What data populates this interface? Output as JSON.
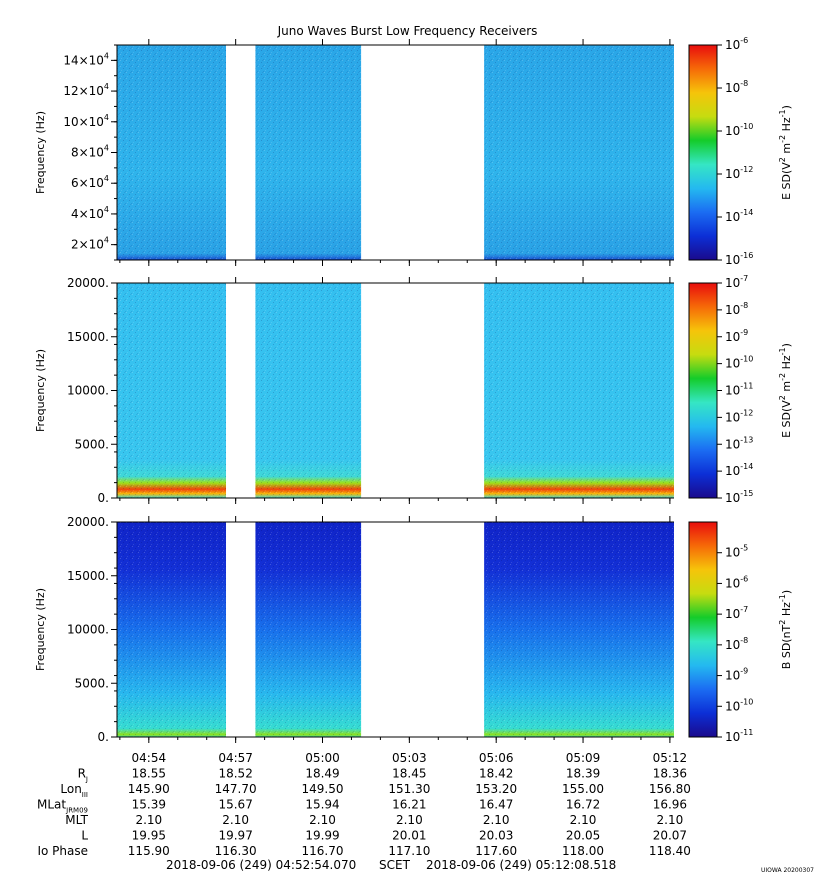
{
  "chart_data": [
    {
      "type": "heatmap",
      "title": "Juno Waves Burst Low Frequency Receivers",
      "ylabel": "Frequency (Hz)",
      "ylim": [
        10000,
        150000
      ],
      "y_scale": "linear",
      "y_ticks": [
        20000,
        40000,
        60000,
        80000,
        100000,
        120000,
        140000
      ],
      "y_tick_mantissa": [
        "2",
        "4",
        "6",
        "8",
        "10",
        "12",
        "14"
      ],
      "y_tick_exponent": "4",
      "colorbar": {
        "label": "E SD(V² m⁻² Hz⁻¹)",
        "label_parts": {
          "base": "E SD(V",
          "sup1": "2",
          "mid": " m",
          "sup2": "-2",
          "mid2": " Hz",
          "sup3": "-1",
          "end": ")"
        },
        "scale": "log",
        "range_exp": [
          -16,
          -6
        ],
        "tick_exps": [
          -16,
          -14,
          -12,
          -10,
          -8,
          -6
        ]
      }
    },
    {
      "type": "heatmap",
      "ylabel": "Frequency (Hz)",
      "ylim": [
        0,
        20000
      ],
      "y_scale": "linear",
      "y_ticks": [
        0,
        5000,
        10000,
        15000,
        20000
      ],
      "y_tick_labels": [
        "0.",
        "5000.",
        "10000.",
        "15000.",
        "20000."
      ],
      "colorbar": {
        "label": "E SD(V² m⁻² Hz⁻¹)",
        "label_parts": {
          "base": "E SD(V",
          "sup1": "2",
          "mid": " m",
          "sup2": "-2",
          "mid2": " Hz",
          "sup3": "-1",
          "end": ")"
        },
        "scale": "log",
        "range_exp": [
          -15,
          -7
        ],
        "tick_exps": [
          -15,
          -14,
          -13,
          -12,
          -11,
          -10,
          -9,
          -8,
          -7
        ]
      }
    },
    {
      "type": "heatmap",
      "ylabel": "Frequency (Hz)",
      "ylim": [
        0,
        20000
      ],
      "y_scale": "linear",
      "y_ticks": [
        0,
        5000,
        10000,
        15000,
        20000
      ],
      "y_tick_labels": [
        "0.",
        "5000.",
        "10000.",
        "15000.",
        "20000."
      ],
      "colorbar": {
        "label": "B SD(nT² Hz⁻¹)",
        "label_parts": {
          "base": "B SD(nT",
          "sup1": "2",
          "mid": " Hz",
          "sup2": "-1",
          "end": ")"
        },
        "scale": "log",
        "range_exp": [
          -11,
          -4
        ],
        "tick_exps": [
          -11,
          -10,
          -9,
          -8,
          -7,
          -6,
          -5
        ]
      }
    }
  ],
  "time_axis": {
    "start": "04:52:54.070",
    "end": "05:12:08.518",
    "tick_labels": [
      "04:54",
      "04:57",
      "05:00",
      "05:03",
      "05:06",
      "05:09",
      "05:12"
    ],
    "data_gaps": [
      [
        "04:56:40",
        "04:57:41"
      ],
      [
        "05:01:20",
        "05:05:35"
      ]
    ],
    "start_label": "2018-09-06 (249) 04:52:54.070",
    "scet_label": "SCET",
    "end_label": "2018-09-06 (249) 05:12:08.518"
  },
  "ephemeris": [
    {
      "name": "R",
      "sub": "J",
      "values": [
        "18.55",
        "18.52",
        "18.49",
        "18.45",
        "18.42",
        "18.39",
        "18.36"
      ]
    },
    {
      "name": "Lon",
      "sub": "III",
      "values": [
        "145.90",
        "147.70",
        "149.50",
        "151.30",
        "153.20",
        "155.00",
        "156.80"
      ]
    },
    {
      "name": "MLat",
      "sub": "JRM09",
      "values": [
        "15.39",
        "15.67",
        "15.94",
        "16.21",
        "16.47",
        "16.72",
        "16.96"
      ]
    },
    {
      "name": "MLT",
      "sub": "",
      "values": [
        "2.10",
        "2.10",
        "2.10",
        "2.10",
        "2.10",
        "2.10",
        "2.10"
      ]
    },
    {
      "name": "L",
      "sub": "",
      "values": [
        "19.95",
        "19.97",
        "19.99",
        "20.01",
        "20.03",
        "20.05",
        "20.07"
      ]
    },
    {
      "name": "Io Phase",
      "sub": "",
      "values": [
        "115.90",
        "116.30",
        "116.70",
        "117.10",
        "117.60",
        "118.00",
        "118.40"
      ]
    }
  ],
  "credit": "UIOWA 20200307",
  "colors": {
    "background": "#ffffff",
    "axis": "#000000",
    "colormap": [
      "#1a0a8c",
      "#0c2fd6",
      "#1b6cf2",
      "#24b9f0",
      "#35e6c4",
      "#14cc2a",
      "#c6dc10",
      "#f6c40a",
      "#f66a08",
      "#e80d0d"
    ]
  }
}
